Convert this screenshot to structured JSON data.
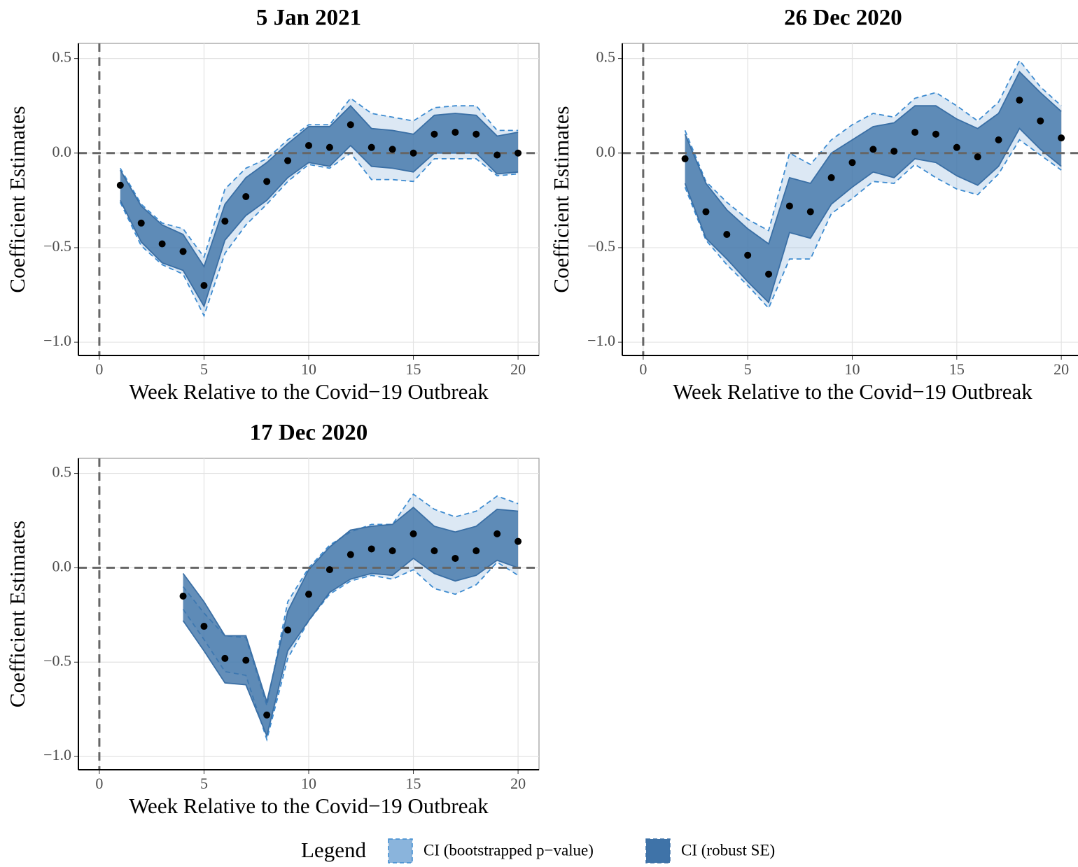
{
  "chart_data": [
    {
      "type": "scatter",
      "title": "5 Jan 2021",
      "x_label": "Week Relative to the Covid−19 Outbreak",
      "y_label": "Coefficient Estimates",
      "x": [
        1,
        2,
        3,
        4,
        5,
        6,
        7,
        8,
        9,
        10,
        11,
        12,
        13,
        14,
        15,
        16,
        17,
        18,
        19,
        20
      ],
      "estimates": {
        "color": "#000000",
        "values": [
          -0.17,
          -0.37,
          -0.48,
          -0.52,
          -0.7,
          -0.36,
          -0.23,
          -0.15,
          -0.04,
          0.04,
          0.03,
          0.15,
          0.03,
          0.02,
          0.0,
          0.1,
          0.11,
          0.1,
          -0.01,
          0.0
        ]
      },
      "bands": [
        {
          "upper": [
            -0.08,
            -0.27,
            -0.37,
            -0.4,
            -0.55,
            -0.19,
            -0.08,
            -0.03,
            0.07,
            0.15,
            0.15,
            0.29,
            0.21,
            0.19,
            0.17,
            0.24,
            0.25,
            0.25,
            0.12,
            0.12
          ],
          "lower": [
            -0.26,
            -0.49,
            -0.59,
            -0.64,
            -0.86,
            -0.53,
            -0.38,
            -0.27,
            -0.15,
            -0.06,
            -0.08,
            0.0,
            -0.14,
            -0.14,
            -0.15,
            -0.03,
            -0.03,
            -0.03,
            -0.12,
            -0.11
          ]
        },
        {
          "upper": [
            -0.09,
            -0.28,
            -0.38,
            -0.43,
            -0.6,
            -0.27,
            -0.13,
            -0.05,
            0.05,
            0.14,
            0.14,
            0.25,
            0.13,
            0.12,
            0.1,
            0.2,
            0.21,
            0.2,
            0.09,
            0.11
          ],
          "lower": [
            -0.25,
            -0.47,
            -0.58,
            -0.62,
            -0.81,
            -0.46,
            -0.33,
            -0.25,
            -0.13,
            -0.05,
            -0.07,
            0.04,
            -0.07,
            -0.08,
            -0.1,
            0.0,
            0.0,
            0.0,
            -0.11,
            -0.1
          ]
        }
      ],
      "hline": 0,
      "vline": 0,
      "xlim": [
        -1,
        21
      ],
      "ylim": [
        -1.07,
        0.58
      ],
      "xticks": [
        0,
        5,
        10,
        15,
        20
      ],
      "yticks": [
        {
          "value": -1.0,
          "label": "−1.0"
        },
        {
          "value": -0.5,
          "label": "−0.5"
        },
        {
          "value": 0.0,
          "label": "0.0"
        },
        {
          "value": 0.5,
          "label": "0.5"
        }
      ],
      "grid": true
    },
    {
      "type": "scatter",
      "title": "26 Dec 2020",
      "x_label": "Week Relative to the Covid−19 Outbreak",
      "y_label": "Coefficient Estimates",
      "x": [
        2,
        3,
        4,
        5,
        6,
        7,
        8,
        9,
        10,
        11,
        12,
        13,
        14,
        15,
        16,
        17,
        18,
        19,
        20
      ],
      "estimates": {
        "color": "#000000",
        "values": [
          -0.03,
          -0.31,
          -0.43,
          -0.54,
          -0.64,
          -0.28,
          -0.31,
          -0.13,
          -0.05,
          0.02,
          0.01,
          0.11,
          0.1,
          0.03,
          -0.02,
          0.07,
          0.28,
          0.17,
          0.08
        ]
      },
      "bands": [
        {
          "upper": [
            0.12,
            -0.15,
            -0.26,
            -0.35,
            -0.41,
            0.0,
            -0.06,
            0.07,
            0.15,
            0.21,
            0.19,
            0.29,
            0.32,
            0.25,
            0.17,
            0.27,
            0.49,
            0.35,
            0.25
          ],
          "lower": [
            -0.18,
            -0.46,
            -0.59,
            -0.7,
            -0.82,
            -0.56,
            -0.56,
            -0.32,
            -0.24,
            -0.15,
            -0.16,
            -0.06,
            -0.13,
            -0.19,
            -0.22,
            -0.11,
            0.07,
            -0.01,
            -0.09
          ]
        },
        {
          "upper": [
            0.1,
            -0.16,
            -0.3,
            -0.4,
            -0.48,
            -0.13,
            -0.16,
            0.0,
            0.07,
            0.14,
            0.16,
            0.25,
            0.25,
            0.18,
            0.13,
            0.21,
            0.43,
            0.32,
            0.22
          ],
          "lower": [
            -0.16,
            -0.45,
            -0.56,
            -0.68,
            -0.79,
            -0.42,
            -0.45,
            -0.27,
            -0.18,
            -0.1,
            -0.13,
            -0.03,
            -0.05,
            -0.12,
            -0.17,
            -0.07,
            0.13,
            0.02,
            -0.07
          ]
        }
      ],
      "hline": 0,
      "vline": 0,
      "xlim": [
        -1,
        21
      ],
      "ylim": [
        -1.07,
        0.58
      ],
      "xticks": [
        0,
        5,
        10,
        15,
        20
      ],
      "yticks": [
        {
          "value": -1.0,
          "label": "−1.0"
        },
        {
          "value": -0.5,
          "label": "−0.5"
        },
        {
          "value": 0.0,
          "label": "0.0"
        },
        {
          "value": 0.5,
          "label": "0.5"
        }
      ],
      "grid": true
    },
    {
      "type": "scatter",
      "title": "17 Dec 2020",
      "x_label": "Week Relative to the Covid−19 Outbreak",
      "y_label": "Coefficient Estimates",
      "x": [
        4,
        5,
        6,
        7,
        8,
        9,
        10,
        11,
        12,
        13,
        14,
        15,
        16,
        17,
        18,
        19,
        20
      ],
      "estimates": {
        "color": "#000000",
        "values": [
          -0.15,
          -0.31,
          -0.48,
          -0.49,
          -0.78,
          -0.33,
          -0.14,
          -0.01,
          0.07,
          0.1,
          0.09,
          0.18,
          0.09,
          0.05,
          0.09,
          0.18,
          0.14
        ]
      },
      "bands": [
        {
          "upper": [
            -0.1,
            -0.24,
            -0.36,
            -0.37,
            -0.73,
            -0.18,
            0.0,
            0.12,
            0.19,
            0.23,
            0.23,
            0.39,
            0.31,
            0.27,
            0.3,
            0.38,
            0.34
          ],
          "lower": [
            -0.22,
            -0.38,
            -0.55,
            -0.57,
            -0.91,
            -0.48,
            -0.28,
            -0.14,
            -0.07,
            -0.04,
            -0.06,
            -0.01,
            -0.11,
            -0.14,
            -0.09,
            0.03,
            -0.04
          ]
        },
        {
          "upper": [
            -0.03,
            -0.18,
            -0.36,
            -0.36,
            -0.71,
            -0.23,
            -0.01,
            0.11,
            0.2,
            0.22,
            0.23,
            0.32,
            0.22,
            0.19,
            0.22,
            0.31,
            0.3
          ],
          "lower": [
            -0.28,
            -0.44,
            -0.61,
            -0.62,
            -0.89,
            -0.44,
            -0.28,
            -0.13,
            -0.06,
            -0.03,
            -0.04,
            0.05,
            -0.03,
            -0.07,
            -0.04,
            0.04,
            0.0
          ]
        }
      ],
      "hline": 0,
      "vline": 0,
      "xlim": [
        -1,
        21
      ],
      "ylim": [
        -1.07,
        0.58
      ],
      "xticks": [
        0,
        5,
        10,
        15,
        20
      ],
      "yticks": [
        {
          "value": -1.0,
          "label": "−1.0"
        },
        {
          "value": -0.5,
          "label": "−0.5"
        },
        {
          "value": 0.0,
          "label": "0.0"
        },
        {
          "value": 0.5,
          "label": "0.5"
        }
      ],
      "grid": true
    }
  ],
  "legend": {
    "title": "Legend",
    "entries": [
      {
        "name": "CI (bootstrapped p−value)",
        "color": "#8ab4dc",
        "opacity": 0.3,
        "stroke": "#3d8bd0",
        "dashed": true
      },
      {
        "name": "CI (robust SE)",
        "color": "#3f73a8",
        "opacity": 0.8,
        "stroke": "#3a6fa5",
        "dashed": false
      }
    ]
  }
}
